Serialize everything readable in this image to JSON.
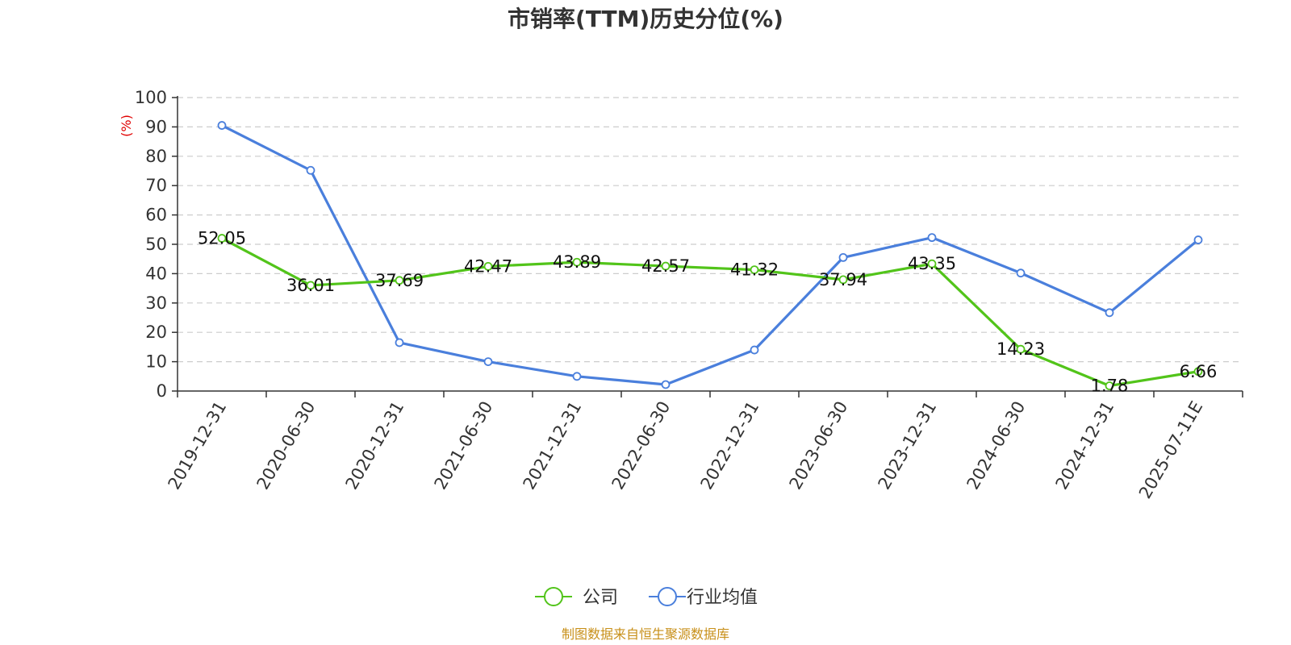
{
  "chart_data": {
    "type": "line",
    "title": "市销率(TTM)历史分位(%)",
    "ylabel": "(%)",
    "xlabel": "",
    "ylim": [
      0,
      100
    ],
    "yticks": [
      "0",
      "10",
      "20",
      "30",
      "40",
      "50",
      "60",
      "70",
      "80",
      "90",
      "100"
    ],
    "categories": [
      "2019-12-31",
      "2020-06-30",
      "2020-12-31",
      "2021-06-30",
      "2021-12-31",
      "2022-06-30",
      "2022-12-31",
      "2023-06-30",
      "2023-12-31",
      "2024-06-30",
      "2024-12-31",
      "2025-07-11E"
    ],
    "grid": "horizontal dashed",
    "legend_position": "bottom-center",
    "series": [
      {
        "name": "公司",
        "color": "#52c41a",
        "values": [
          52.05,
          36.01,
          37.69,
          42.47,
          43.89,
          42.57,
          41.32,
          37.94,
          43.35,
          14.23,
          1.78,
          6.66
        ],
        "labels": [
          "52.05",
          "36.01",
          "37.69",
          "42.47",
          "43.89",
          "42.57",
          "41.32",
          "37.94",
          "43.35",
          "14.23",
          "1.78",
          "6.66"
        ]
      },
      {
        "name": "行业均值",
        "color": "#4a7fdc",
        "values": [
          90.5,
          75.2,
          16.5,
          10.0,
          5.0,
          2.2,
          14.0,
          45.5,
          52.3,
          40.2,
          26.7,
          51.5
        ]
      }
    ],
    "source": "制图数据来自恒生聚源数据库"
  }
}
